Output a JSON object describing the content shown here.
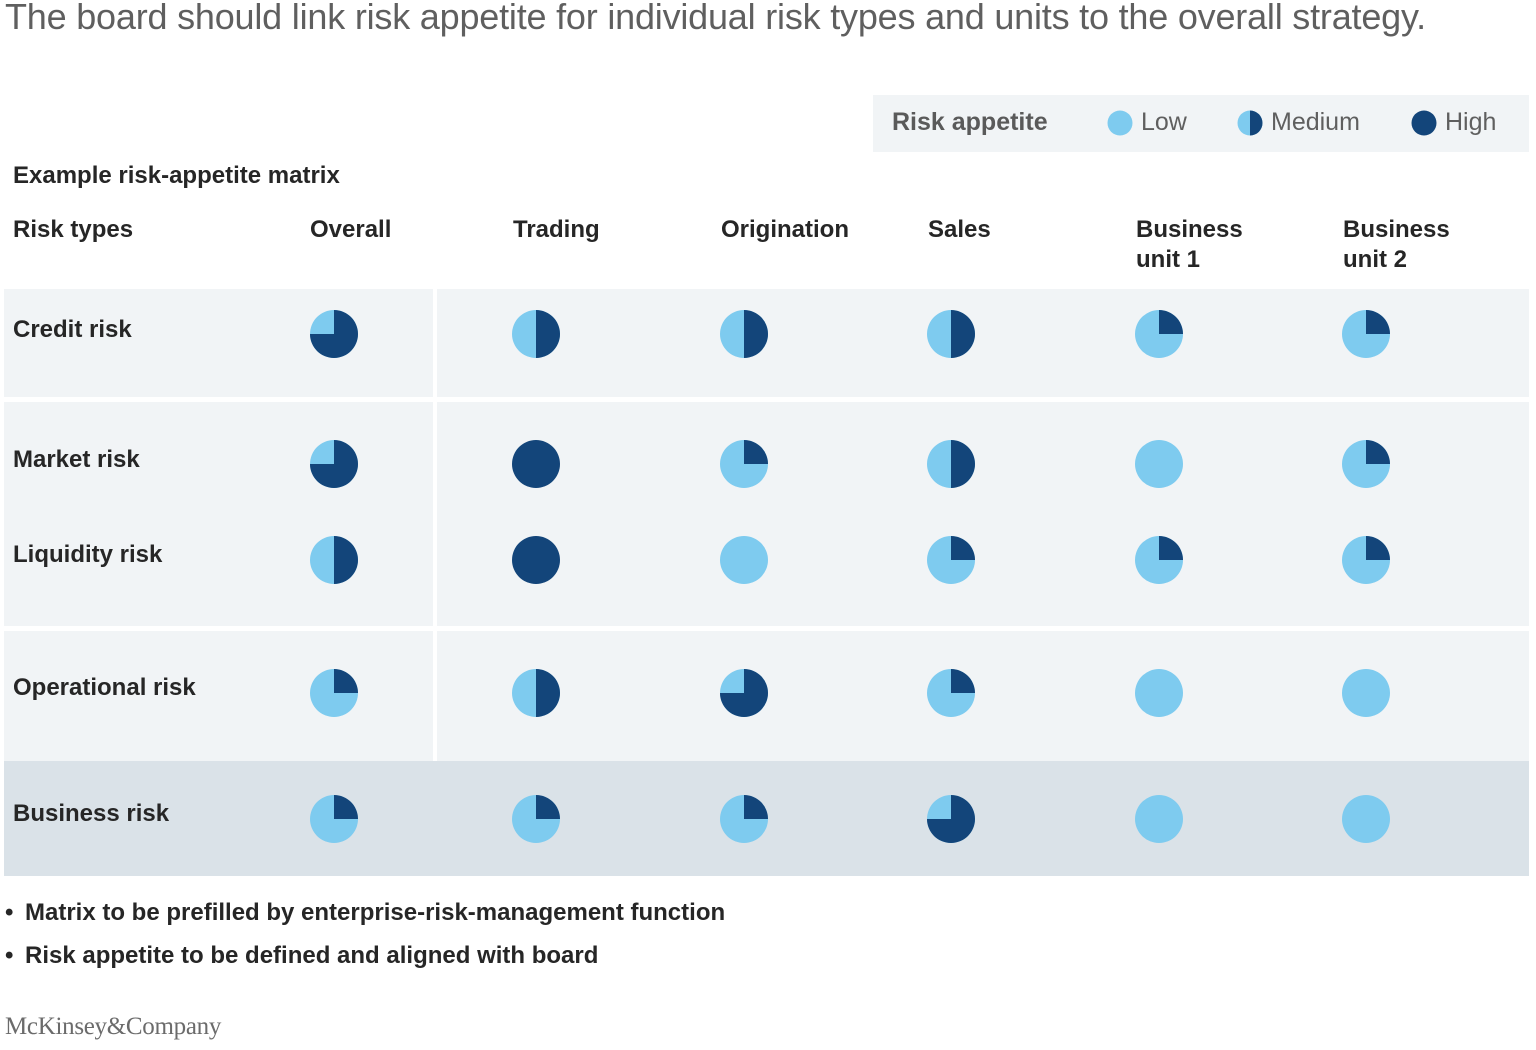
{
  "headline": "The board should link risk appetite for individual risk types and units to the overall strategy.",
  "legend": {
    "title": "Risk appetite",
    "items": [
      {
        "label": "Low",
        "fraction": 0
      },
      {
        "label": "Medium",
        "fraction": 0.5
      },
      {
        "label": "High",
        "fraction": 1
      }
    ]
  },
  "colors": {
    "low": "#7ecbef",
    "high": "#13457a",
    "band_light": "#f1f4f6",
    "band_dark": "#dae2e8"
  },
  "matrix_title": "Example risk-appetite matrix",
  "columns": {
    "risk_types": "Risk types",
    "overall": "Overall",
    "trading": "Trading",
    "origination": "Origination",
    "sales": "Sales",
    "bu1_line1": "Business",
    "bu1_line2": "unit 1",
    "bu2_line1": "Business",
    "bu2_line2": "unit 2"
  },
  "chart_data": {
    "type": "table",
    "title": "Example risk-appetite matrix",
    "value_meaning": "share of circle filled dark (0 = low, 0.5 = medium, 1 = high)",
    "columns": [
      "Overall",
      "Trading",
      "Origination",
      "Sales",
      "Business unit 1",
      "Business unit 2"
    ],
    "rows": [
      {
        "label": "Credit risk",
        "values": [
          0.75,
          0.5,
          0.5,
          0.5,
          0.25,
          0.25
        ]
      },
      {
        "label": "Market risk",
        "values": [
          0.75,
          1,
          0.25,
          0.5,
          0,
          0.25
        ]
      },
      {
        "label": "Liquidity risk",
        "values": [
          0.5,
          1,
          0,
          0.25,
          0.25,
          0.25
        ]
      },
      {
        "label": "Operational risk",
        "values": [
          0.25,
          0.5,
          0.75,
          0.25,
          0,
          0
        ]
      },
      {
        "label": "Business risk",
        "values": [
          0.25,
          0.25,
          0.25,
          0.75,
          0,
          0
        ]
      }
    ]
  },
  "notes": [
    "Matrix to be prefilled by enterprise-risk-management function",
    "Risk appetite to be defined and aligned with board"
  ],
  "bullet": "•",
  "logo": "McKinsey&Company"
}
